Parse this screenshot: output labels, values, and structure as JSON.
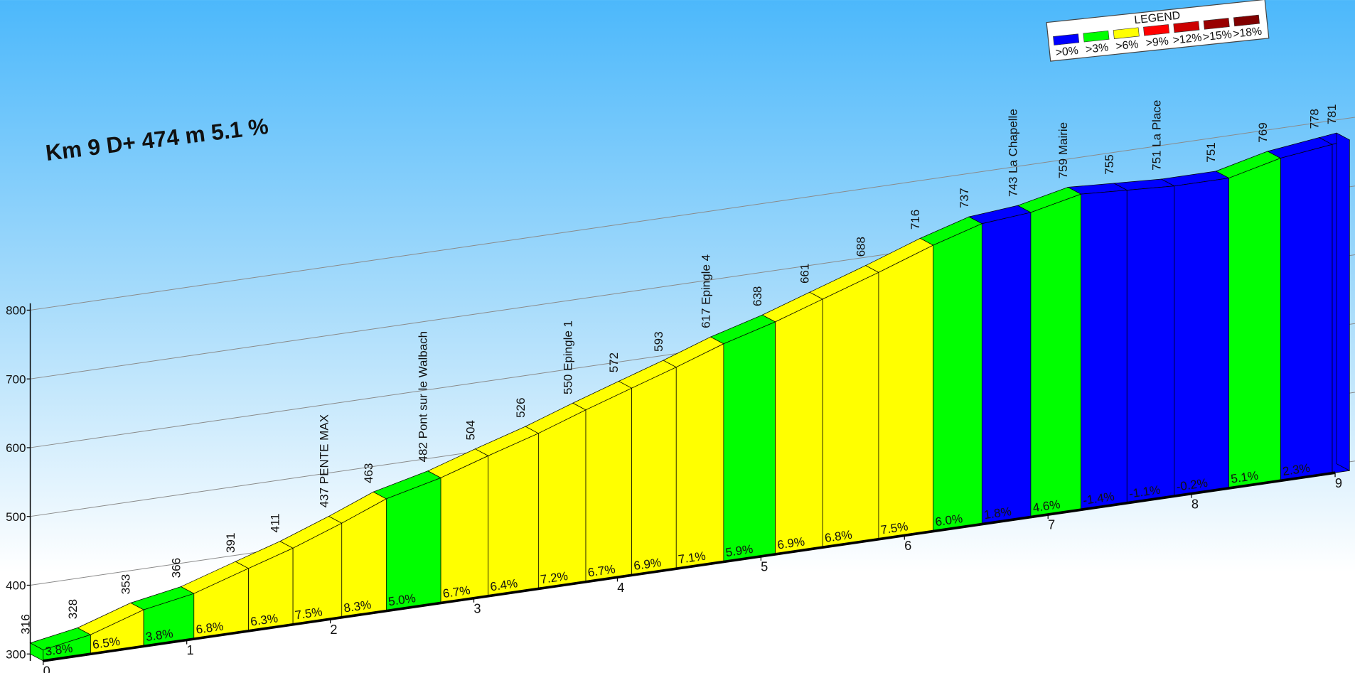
{
  "chart_data": {
    "type": "climb-profile",
    "title": "Km 9 D+ 474 m 5.1 %",
    "ylim": [
      300,
      800
    ],
    "yticks": [
      300,
      400,
      500,
      600,
      700,
      800
    ],
    "xlim": [
      0,
      9
    ],
    "xticks": [
      0,
      1,
      2,
      3,
      4,
      5,
      6,
      7,
      8,
      9
    ],
    "grid": true,
    "x": [
      0,
      0.33,
      0.7,
      1.05,
      1.43,
      1.74,
      2.08,
      2.39,
      2.77,
      3.1,
      3.45,
      3.78,
      4.1,
      4.41,
      4.74,
      5.1,
      5.43,
      5.82,
      6.2,
      6.54,
      6.88,
      7.23,
      7.55,
      7.88,
      8.26,
      8.62,
      8.98,
      9.1
    ],
    "elevations": [
      316,
      328,
      353,
      366,
      391,
      411,
      437,
      463,
      482,
      504,
      526,
      550,
      572,
      593,
      617,
      638,
      661,
      688,
      716,
      737,
      743,
      759,
      755,
      751,
      751,
      769,
      778,
      781
    ],
    "elevation_labels": [
      "316",
      "328",
      "353",
      "366",
      "391",
      "411",
      "437 PENTE MAX",
      "463",
      "482 Pont sur le Walbach",
      "504",
      "526",
      "550 Epingle 1",
      "572",
      "593",
      "617 Epingle 4",
      "638",
      "661",
      "688",
      "716",
      "737",
      "743 La Chapelle",
      "759 Mairie",
      "755",
      "751 La Place",
      "751",
      "769",
      "778",
      "781"
    ],
    "gradients": [
      3.8,
      6.5,
      3.8,
      6.8,
      6.3,
      7.5,
      8.3,
      5.0,
      6.7,
      6.4,
      7.2,
      6.7,
      6.9,
      7.1,
      5.9,
      6.9,
      6.8,
      7.5,
      6.0,
      1.8,
      4.6,
      -1.4,
      -1.1,
      -0.2,
      5.1,
      2.3,
      null
    ],
    "gradient_labels": [
      "3.8%",
      "6.5%",
      "3.8%",
      "6.8%",
      "6.3%",
      "7.5%",
      "8.3%",
      "5.0%",
      "6.7%",
      "6.4%",
      "7.2%",
      "6.7%",
      "6.9%",
      "7.1%",
      "5.9%",
      "6.9%",
      "6.8%",
      "7.5%",
      "6.0%",
      "1.8%",
      "4.6%",
      "-1.4%",
      "-1.1%",
      "-0.2%",
      "5.1%",
      "2.3%",
      null
    ],
    "segment_colors": [
      "#00ff00",
      "#ffff00",
      "#00ff00",
      "#ffff00",
      "#ffff00",
      "#ffff00",
      "#ffff00",
      "#00ff00",
      "#ffff00",
      "#ffff00",
      "#ffff00",
      "#ffff00",
      "#ffff00",
      "#ffff00",
      "#00ff00",
      "#ffff00",
      "#ffff00",
      "#ffff00",
      "#00ff00",
      "#0000ff",
      "#00ff00",
      "#0000ff",
      "#0000ff",
      "#0000ff",
      "#00ff00",
      "#0000ff",
      "#0000ff"
    ],
    "legend": {
      "title": "LEGEND",
      "labels": [
        ">0%",
        ">3%",
        ">6%",
        ">9%",
        ">12%",
        ">15%",
        ">18%"
      ],
      "colors": [
        "#0000ff",
        "#00ff00",
        "#ffff00",
        "#ff0000",
        "#cc0000",
        "#990000",
        "#800000"
      ]
    }
  }
}
